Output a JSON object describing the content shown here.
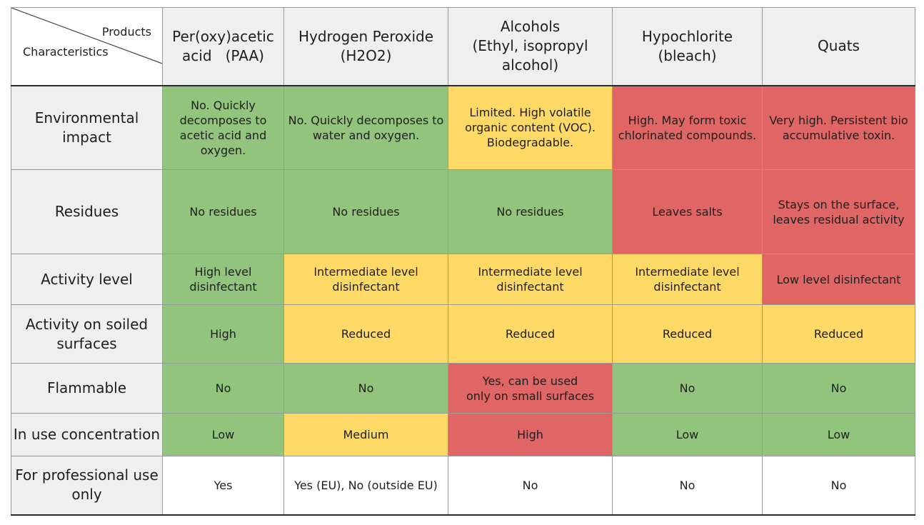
{
  "header": {
    "corner_top": "Products",
    "corner_bottom": "Characteristics",
    "products": [
      {
        "lines": [
          "Per(oxy)acetic",
          "acid   (PAA)"
        ]
      },
      {
        "lines": [
          "Hydrogen Peroxide",
          "(H2O2)"
        ]
      },
      {
        "lines": [
          "Alcohols",
          "(Ethyl, isopropyl",
          "alcohol)"
        ]
      },
      {
        "lines": [
          "Hypochlorite",
          "(bleach)"
        ]
      },
      {
        "lines": [
          "Quats"
        ]
      }
    ]
  },
  "colors": {
    "green": "#93c47d",
    "yellow": "#ffd966",
    "red": "#e06666",
    "white": "#ffffff",
    "header_bg": "#efefef"
  },
  "rows": [
    {
      "label": [
        "Environmental",
        "impact"
      ],
      "cells": [
        {
          "lines": [
            "No. Quickly",
            "decomposes to",
            "acetic acid and",
            "oxygen."
          ],
          "rating": "green"
        },
        {
          "lines": [
            "No. Quickly decomposes to",
            "water and oxygen."
          ],
          "rating": "green"
        },
        {
          "lines": [
            "Limited. High volatile",
            "organic content (VOC).",
            "Biodegradable."
          ],
          "rating": "yellow"
        },
        {
          "lines": [
            "High. May form toxic",
            "chlorinated compounds."
          ],
          "rating": "red"
        },
        {
          "lines": [
            "Very high. Persistent bio",
            "accumulative toxin."
          ],
          "rating": "red"
        }
      ]
    },
    {
      "label": [
        "Residues"
      ],
      "cells": [
        {
          "lines": [
            "No residues"
          ],
          "rating": "green"
        },
        {
          "lines": [
            "No residues"
          ],
          "rating": "green"
        },
        {
          "lines": [
            "No residues"
          ],
          "rating": "green"
        },
        {
          "lines": [
            "Leaves salts"
          ],
          "rating": "red"
        },
        {
          "lines": [
            "Stays on the surface,",
            "leaves residual activity"
          ],
          "rating": "red"
        }
      ]
    },
    {
      "label": [
        "Activity level"
      ],
      "cells": [
        {
          "lines": [
            "High level",
            "disinfectant"
          ],
          "rating": "green"
        },
        {
          "lines": [
            "Intermediate level",
            "disinfectant"
          ],
          "rating": "yellow"
        },
        {
          "lines": [
            "Intermediate level",
            "disinfectant"
          ],
          "rating": "yellow"
        },
        {
          "lines": [
            "Intermediate level",
            "disinfectant"
          ],
          "rating": "yellow"
        },
        {
          "lines": [
            "Low level disinfectant"
          ],
          "rating": "red"
        }
      ]
    },
    {
      "label": [
        "Activity on soiled",
        "surfaces"
      ],
      "cells": [
        {
          "lines": [
            "High"
          ],
          "rating": "green"
        },
        {
          "lines": [
            "Reduced"
          ],
          "rating": "yellow"
        },
        {
          "lines": [
            "Reduced"
          ],
          "rating": "yellow"
        },
        {
          "lines": [
            "Reduced"
          ],
          "rating": "yellow"
        },
        {
          "lines": [
            "Reduced"
          ],
          "rating": "yellow"
        }
      ]
    },
    {
      "label": [
        "Flammable"
      ],
      "cells": [
        {
          "lines": [
            "No"
          ],
          "rating": "green"
        },
        {
          "lines": [
            "No"
          ],
          "rating": "green"
        },
        {
          "lines": [
            "Yes, can be used",
            "only on small surfaces"
          ],
          "rating": "red"
        },
        {
          "lines": [
            "No"
          ],
          "rating": "green"
        },
        {
          "lines": [
            "No"
          ],
          "rating": "green"
        }
      ]
    },
    {
      "label": [
        "In use concentration"
      ],
      "cells": [
        {
          "lines": [
            "Low"
          ],
          "rating": "green"
        },
        {
          "lines": [
            "Medium"
          ],
          "rating": "yellow"
        },
        {
          "lines": [
            "High"
          ],
          "rating": "red"
        },
        {
          "lines": [
            "Low"
          ],
          "rating": "green"
        },
        {
          "lines": [
            "Low"
          ],
          "rating": "green"
        }
      ]
    },
    {
      "label": [
        "For professional use",
        "only"
      ],
      "cells": [
        {
          "lines": [
            "Yes"
          ],
          "rating": "white"
        },
        {
          "lines": [
            "Yes (EU), No (outside EU)"
          ],
          "rating": "white"
        },
        {
          "lines": [
            "No"
          ],
          "rating": "white"
        },
        {
          "lines": [
            "No"
          ],
          "rating": "white"
        },
        {
          "lines": [
            "No"
          ],
          "rating": "white"
        }
      ]
    }
  ]
}
